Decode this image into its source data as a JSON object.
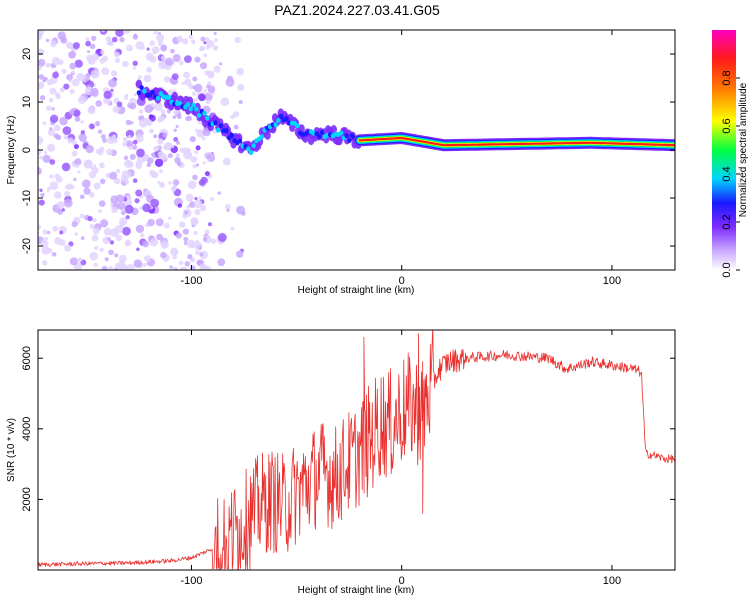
{
  "title": "PAZ1.2024.227.03.41.G05",
  "chart_data": [
    {
      "type": "heatmap",
      "panel": "spectrogram",
      "xlabel": "Height of straight line (km)",
      "ylabel": "Frequency (Hz)",
      "xlim": [
        -173,
        130
      ],
      "ylim": [
        -25,
        25
      ],
      "xticks": [
        -100,
        0,
        100
      ],
      "yticks": [
        -20,
        -10,
        0,
        10,
        20
      ],
      "colorbar": {
        "label": "Normalized spectral amplitude",
        "range": [
          0,
          1
        ],
        "ticks": [
          "0.0",
          "0.2",
          "0.4",
          "0.6",
          "0.8"
        ],
        "colormap": [
          "#ffffff",
          "#c9a8ff",
          "#7d2bff",
          "#1a1aff",
          "#00d5ff",
          "#00ff40",
          "#ffff00",
          "#ff7f00",
          "#ff1a1a",
          "#ff00bf"
        ]
      },
      "tone_frequency_hz": [
        {
          "x": -125,
          "f": 12.5
        },
        {
          "x": -100,
          "f": 9
        },
        {
          "x": -85,
          "f": 4
        },
        {
          "x": -72,
          "f": 0
        },
        {
          "x": -58,
          "f": 7
        },
        {
          "x": -45,
          "f": 3
        },
        {
          "x": -35,
          "f": 3.5
        },
        {
          "x": -20,
          "f": 2
        },
        {
          "x": 0,
          "f": 2.5
        },
        {
          "x": 20,
          "f": 1
        },
        {
          "x": 90,
          "f": 1.5
        },
        {
          "x": 130,
          "f": 1
        }
      ],
      "strong_region": {
        "x_start": -20,
        "x_end": 130
      }
    },
    {
      "type": "line",
      "panel": "snr",
      "xlabel": "Height of straight line (km)",
      "ylabel": "SNR (10 * v/v)",
      "xlim": [
        -173,
        130
      ],
      "ylim": [
        0,
        6800
      ],
      "xticks": [
        -100,
        0,
        100
      ],
      "yticks": [
        2000,
        4000,
        6000
      ],
      "color": "#e8302e",
      "series": [
        {
          "x": [
            -173,
            -150,
            -130,
            -110,
            -100,
            -90,
            -82,
            -75,
            -68,
            -62,
            -56,
            -50,
            -44,
            -38,
            -32,
            -26,
            -20,
            -15,
            -10,
            -5,
            0,
            5,
            10,
            14,
            18,
            22,
            30,
            40,
            50,
            60,
            70,
            78,
            85,
            90,
            100,
            110,
            114,
            116,
            120,
            125,
            130
          ],
          "y": [
            150,
            180,
            200,
            260,
            350,
            600,
            900,
            1300,
            1800,
            2000,
            1800,
            2200,
            2500,
            2800,
            2600,
            3000,
            3300,
            3700,
            4200,
            4100,
            4500,
            4600,
            4500,
            5200,
            5700,
            5900,
            6000,
            6050,
            6100,
            6050,
            6000,
            5700,
            5800,
            5900,
            5800,
            5700,
            5600,
            3300,
            3250,
            3150,
            3150
          ]
        }
      ],
      "spikes": [
        {
          "x": -18,
          "y": 6600
        },
        {
          "x": 8,
          "y": 6700
        },
        {
          "x": 10,
          "y": 1600
        }
      ]
    }
  ]
}
